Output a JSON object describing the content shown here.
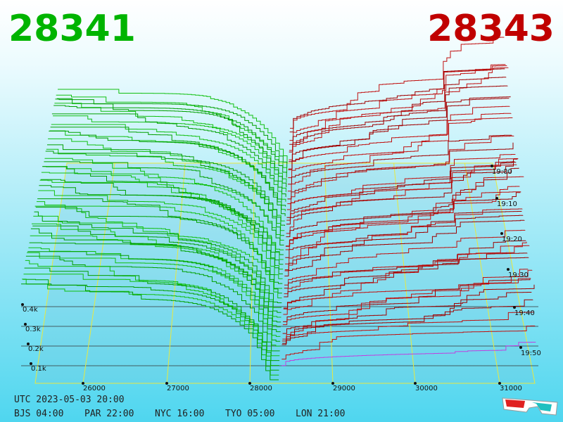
{
  "header": {
    "bid": "28341",
    "ask": "28343"
  },
  "price_axis": {
    "ticks": [
      "26000",
      "27000",
      "28000",
      "29000",
      "30000",
      "31000"
    ]
  },
  "depth_axis": {
    "ticks": [
      "0.4k",
      "0.3k",
      "0.2k",
      "0.1k"
    ]
  },
  "time_axis": {
    "ticks": [
      "19:00",
      "19:10",
      "19:20",
      "19:30",
      "19:40",
      "19:50"
    ]
  },
  "footer": {
    "utc": "UTC 2023-05-03 20:00",
    "zones": [
      "BJS 04:00",
      "PAR 22:00",
      "NYC 16:00",
      "TYO 05:00",
      "LON 21:00"
    ]
  }
}
